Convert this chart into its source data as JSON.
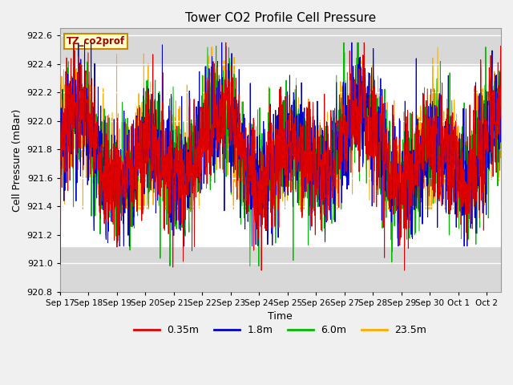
{
  "title": "Tower CO2 Profile Cell Pressure",
  "xlabel": "Time",
  "ylabel": "Cell Pressure (mBar)",
  "ylim": [
    920.8,
    922.65
  ],
  "xlim_days": [
    0,
    15.5
  ],
  "yticks": [
    920.8,
    921.0,
    921.2,
    921.4,
    921.6,
    921.8,
    922.0,
    922.2,
    922.4,
    922.6
  ],
  "xtick_labels": [
    "Sep 17",
    "Sep 18",
    "Sep 19",
    "Sep 20",
    "Sep 21",
    "Sep 22",
    "Sep 23",
    "Sep 24",
    "Sep 25",
    "Sep 26",
    "Sep 27",
    "Sep 28",
    "Sep 29",
    "Sep 30",
    "Oct 1",
    "Oct 2"
  ],
  "legend_labels": [
    "0.35m",
    "1.8m",
    "6.0m",
    "23.5m"
  ],
  "legend_colors": [
    "#dd0000",
    "#0000cc",
    "#00bb00",
    "#ffaa00"
  ],
  "site_label": "TZ_co2prof",
  "site_label_color": "#aa0000",
  "site_label_bg": "#ffffcc",
  "site_label_edge": "#cc8800",
  "shaded_ymin": 921.12,
  "shaded_ymax": 922.38,
  "plot_bg_color": "#d8d8d8",
  "fig_bg_color": "#f0f0f0",
  "n_points": 1500,
  "noise_scale": 0.22,
  "base_mean": 921.78,
  "base_amp1": 0.18,
  "base_period1": 2.5,
  "base_amp2": 0.12,
  "base_period2": 5.0
}
